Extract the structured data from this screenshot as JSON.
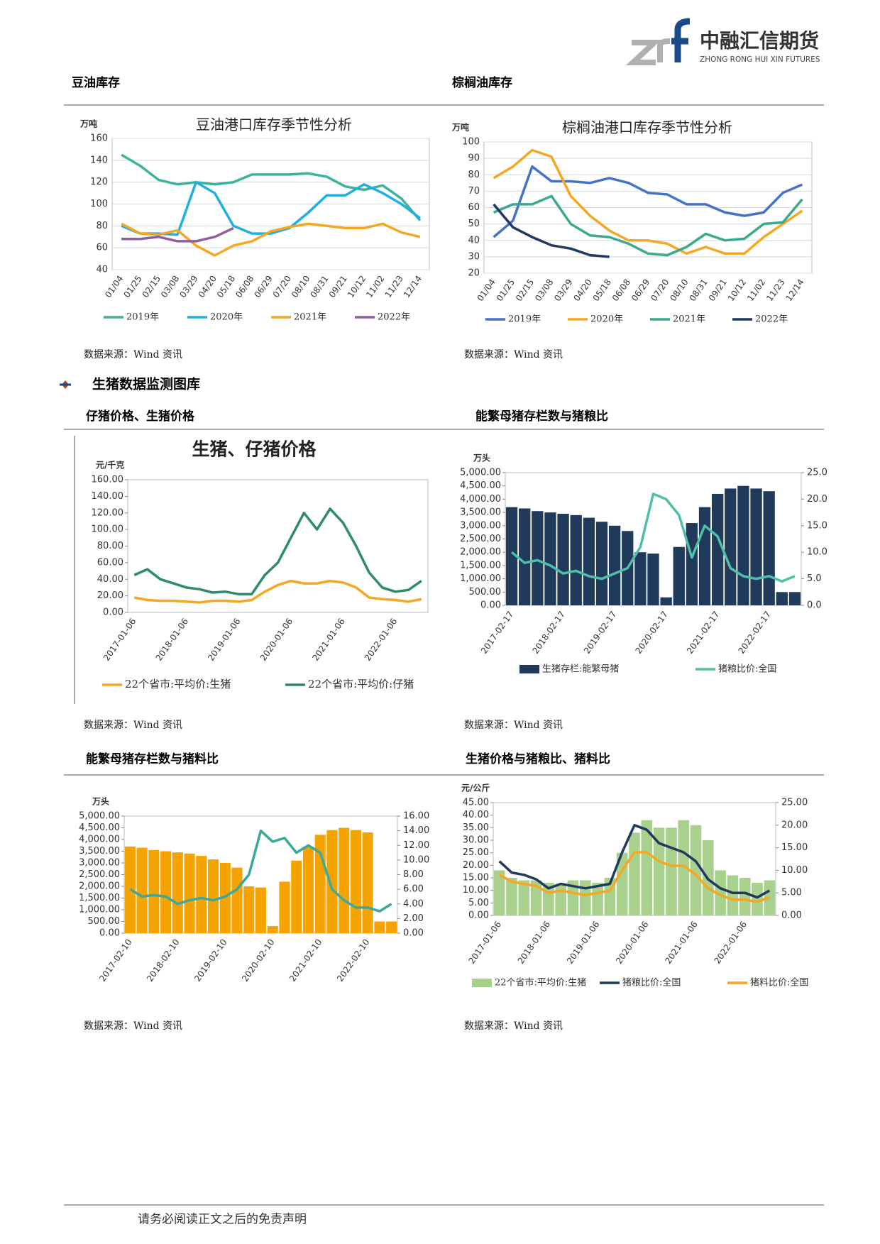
{
  "header": {
    "logo_text": "中融汇信期货",
    "logo_sub": "ZHONG RONG HUI XIN FUTURES"
  },
  "section_title": "生猪数据监测图库",
  "panels": [
    {
      "heading": "豆油库存",
      "source": "数据来源：Wind 资讯"
    },
    {
      "heading": "棕榈油库存",
      "source": "数据来源：Wind 资讯"
    },
    {
      "heading": "仔猪价格、生猪价格",
      "source": "数据来源：Wind 资讯"
    },
    {
      "heading": "能繁母猪存栏数与猪粮比",
      "source": "数据来源：Wind 资讯"
    },
    {
      "heading": "能繁母猪存栏数与猪料比",
      "source": "数据来源：Wind 资讯"
    },
    {
      "heading": "生猪价格与猪粮比、猪料比",
      "source": "数据来源：Wind 资讯"
    }
  ],
  "footer": "请务必阅读正文之后的免责声明",
  "chart_data": [
    {
      "type": "line",
      "title": "豆油港口库存季节性分析",
      "y_label": "万吨",
      "grid": true,
      "categories": [
        "01/04",
        "01/25",
        "02/15",
        "03/08",
        "03/29",
        "04/20",
        "05/18",
        "06/08",
        "06/29",
        "07/20",
        "08/10",
        "08/31",
        "09/21",
        "10/12",
        "11/02",
        "11/23",
        "12/14"
      ],
      "ylim": [
        40,
        160
      ],
      "yticks": [
        40,
        60,
        80,
        100,
        120,
        140,
        160
      ],
      "series": [
        {
          "name": "2019年",
          "color": "#3cb39c",
          "values": [
            145,
            135,
            122,
            118,
            120,
            118,
            120,
            127,
            127,
            127,
            128,
            125,
            116,
            113,
            117,
            105,
            85
          ]
        },
        {
          "name": "2020年",
          "color": "#1fb0e2",
          "values": [
            80,
            73,
            73,
            72,
            120,
            110,
            80,
            73,
            73,
            78,
            92,
            108,
            108,
            118,
            110,
            100,
            87
          ]
        },
        {
          "name": "2021年",
          "color": "#f5a623",
          "values": [
            82,
            73,
            72,
            76,
            62,
            53,
            62,
            66,
            75,
            79,
            82,
            80,
            78,
            78,
            82,
            74,
            70
          ]
        },
        {
          "name": "2022年",
          "color": "#8e5ea2",
          "values": [
            68,
            68,
            70,
            66,
            66,
            70,
            78,
            null,
            null,
            null,
            null,
            null,
            null,
            null,
            null,
            null,
            null
          ]
        }
      ]
    },
    {
      "type": "line",
      "title": "棕榈油港口库存季节性分析",
      "y_label": "万吨",
      "grid": true,
      "categories": [
        "01/04",
        "01/25",
        "02/15",
        "03/08",
        "03/29",
        "04/20",
        "05/18",
        "06/08",
        "06/29",
        "07/20",
        "08/10",
        "08/31",
        "09/21",
        "10/12",
        "11/02",
        "11/23",
        "12/14"
      ],
      "ylim": [
        20,
        100
      ],
      "yticks": [
        20,
        30,
        40,
        50,
        60,
        70,
        80,
        90,
        100
      ],
      "series": [
        {
          "name": "2019年",
          "color": "#4472c4",
          "values": [
            42,
            52,
            85,
            76,
            76,
            75,
            78,
            75,
            69,
            68,
            62,
            62,
            57,
            55,
            57,
            69,
            74
          ]
        },
        {
          "name": "2020年",
          "color": "#f5a623",
          "values": [
            78,
            85,
            95,
            91,
            67,
            55,
            46,
            40,
            40,
            38,
            32,
            36,
            32,
            32,
            42,
            50,
            58
          ]
        },
        {
          "name": "2021年",
          "color": "#3aaa8e",
          "values": [
            57,
            62,
            62,
            67,
            50,
            43,
            42,
            38,
            32,
            31,
            36,
            44,
            40,
            41,
            50,
            51,
            65
          ]
        },
        {
          "name": "2022年",
          "color": "#203864",
          "values": [
            62,
            48,
            42,
            37,
            35,
            31,
            30,
            null,
            null,
            null,
            null,
            null,
            null,
            null,
            null,
            null,
            null
          ]
        }
      ]
    },
    {
      "type": "line",
      "title": "生猪、仔猪价格",
      "y_label": "元/千克",
      "grid": false,
      "categories": [
        "2017-01-06",
        null,
        null,
        null,
        "2018-01-06",
        null,
        null,
        null,
        "2019-01-06",
        null,
        null,
        null,
        "2020-01-06",
        null,
        null,
        null,
        "2021-01-06",
        null,
        null,
        null,
        "2022-01-06",
        null,
        null
      ],
      "ylim": [
        0,
        160
      ],
      "yticks": [
        {
          "value": 0,
          "label": "0.00"
        },
        {
          "value": 20,
          "label": "20.00"
        },
        {
          "value": 40,
          "label": "40.00"
        },
        {
          "value": 60,
          "label": "60.00"
        },
        {
          "value": 80,
          "label": "80.00"
        },
        {
          "value": 100,
          "label": "100.00"
        },
        {
          "value": 120,
          "label": "120.00"
        },
        {
          "value": 140,
          "label": "140.00"
        },
        {
          "value": 160,
          "label": "160.00"
        }
      ],
      "series": [
        {
          "name": "22个省市:平均价:生猪",
          "color": "#f5a623",
          "values": [
            18,
            15,
            14,
            14,
            13,
            12,
            14,
            14,
            13,
            15,
            25,
            33,
            38,
            35,
            35,
            38,
            36,
            30,
            18,
            16,
            15,
            13,
            16
          ]
        },
        {
          "name": "22个省市:平均价:仔猪",
          "color": "#2e8b6e",
          "values": [
            45,
            52,
            40,
            35,
            30,
            28,
            24,
            25,
            22,
            22,
            45,
            60,
            90,
            120,
            100,
            125,
            108,
            80,
            48,
            30,
            25,
            27,
            38
          ]
        }
      ]
    },
    {
      "type": "combo",
      "y_label": "万头",
      "grid": false,
      "categories": [
        "2017-02-17",
        null,
        null,
        null,
        "2018-02-17",
        null,
        null,
        null,
        "2019-02-17",
        null,
        null,
        null,
        "2020-02-17",
        null,
        null,
        null,
        "2021-02-17",
        null,
        null,
        null,
        "2022-02-17",
        null,
        null
      ],
      "ylim": [
        0,
        5000
      ],
      "yticks": [
        {
          "value": 0,
          "label": "0.00"
        },
        {
          "value": 500,
          "label": "500.00"
        },
        {
          "value": 1000,
          "label": "1,000.00"
        },
        {
          "value": 1500,
          "label": "1,500.00"
        },
        {
          "value": 2000,
          "label": "2,000.00"
        },
        {
          "value": 2500,
          "label": "2,500.00"
        },
        {
          "value": 3000,
          "label": "3,000.00"
        },
        {
          "value": 3500,
          "label": "3,500.00"
        },
        {
          "value": 4000,
          "label": "4,000.00"
        },
        {
          "value": 4500,
          "label": "4,500.00"
        },
        {
          "value": 5000,
          "label": "5,000.00"
        }
      ],
      "y2lim": [
        0,
        25
      ],
      "y2ticks": [
        {
          "value": 0,
          "label": "0.0"
        },
        {
          "value": 5,
          "label": "5.0"
        },
        {
          "value": 10,
          "label": "10.0"
        },
        {
          "value": 15,
          "label": "15.0"
        },
        {
          "value": 20,
          "label": "20.0"
        },
        {
          "value": 25,
          "label": "25.0"
        }
      ],
      "series": [
        {
          "name": "生猪存栏:能繁母猪",
          "type": "bar",
          "color": "#1f3a5a",
          "values": [
            3700,
            3650,
            3550,
            3500,
            3450,
            3400,
            3300,
            3150,
            3000,
            2800,
            2000,
            1950,
            300,
            2200,
            3100,
            3700,
            4200,
            4400,
            4500,
            4400,
            4300,
            500,
            500
          ]
        },
        {
          "name": "猪粮比价:全国",
          "type": "line",
          "axis": "y2",
          "color": "#4fbfa8",
          "values": [
            10,
            8,
            8.5,
            7.5,
            6,
            6.5,
            5.5,
            5,
            6,
            7,
            11,
            21,
            20,
            17,
            9,
            15,
            13,
            7,
            5.5,
            5,
            5.5,
            4.5,
            5.5
          ]
        }
      ]
    },
    {
      "type": "combo",
      "y_label": "万头",
      "grid": false,
      "categories": [
        "2017-02-10",
        null,
        null,
        null,
        "2018-02-10",
        null,
        null,
        null,
        "2019-02-10",
        null,
        null,
        null,
        "2020-02-10",
        null,
        null,
        null,
        "2021-02-10",
        null,
        null,
        null,
        "2022-02-10",
        null,
        null
      ],
      "ylim": [
        0,
        5000
      ],
      "yticks": [
        {
          "value": 0,
          "label": "0.00"
        },
        {
          "value": 500,
          "label": "500.00"
        },
        {
          "value": 1000,
          "label": "1,000.00"
        },
        {
          "value": 1500,
          "label": "1,500.00"
        },
        {
          "value": 2000,
          "label": "2,000.00"
        },
        {
          "value": 2500,
          "label": "2,500.00"
        },
        {
          "value": 3000,
          "label": "3,000.00"
        },
        {
          "value": 3500,
          "label": "3,500.00"
        },
        {
          "value": 4000,
          "label": "4,000.00"
        },
        {
          "value": 4500,
          "label": "4,500.00"
        },
        {
          "value": 5000,
          "label": "5,000.00"
        }
      ],
      "y2lim": [
        0,
        16
      ],
      "y2ticks": [
        {
          "value": 0,
          "label": "0.00"
        },
        {
          "value": 2,
          "label": "2.00"
        },
        {
          "value": 4,
          "label": "4.00"
        },
        {
          "value": 6,
          "label": "6.00"
        },
        {
          "value": 8,
          "label": "8.00"
        },
        {
          "value": 10,
          "label": "10.00"
        },
        {
          "value": 12,
          "label": "12.00"
        },
        {
          "value": 14,
          "label": "14.00"
        },
        {
          "value": 16,
          "label": "16.00"
        }
      ],
      "series": [
        {
          "type": "bar",
          "color": "#f5a300",
          "values": [
            3700,
            3650,
            3550,
            3500,
            3450,
            3400,
            3300,
            3150,
            3000,
            2800,
            2000,
            1950,
            300,
            2200,
            3100,
            3700,
            4200,
            4400,
            4500,
            4400,
            4300,
            500,
            500
          ]
        },
        {
          "type": "line",
          "axis": "y2",
          "color": "#3aa89a",
          "values": [
            6,
            5,
            5.2,
            5,
            4,
            4.5,
            4.8,
            4.5,
            5,
            6,
            8,
            14,
            12.5,
            13,
            11,
            12,
            11,
            6,
            4.5,
            3.5,
            3.5,
            3,
            4
          ]
        }
      ]
    },
    {
      "type": "combo",
      "y_label": "元/公斤",
      "grid": false,
      "categories": [
        "2017-01-06",
        null,
        null,
        null,
        "2018-01-06",
        null,
        null,
        null,
        "2019-01-06",
        null,
        null,
        null,
        "2020-01-06",
        null,
        null,
        null,
        "2021-01-06",
        null,
        null,
        null,
        "2022-01-06",
        null,
        null
      ],
      "ylim": [
        0,
        45
      ],
      "yticks": [
        {
          "value": 0,
          "label": "0.00"
        },
        {
          "value": 5,
          "label": "5.00"
        },
        {
          "value": 10,
          "label": "10.00"
        },
        {
          "value": 15,
          "label": "15.00"
        },
        {
          "value": 20,
          "label": "20.00"
        },
        {
          "value": 25,
          "label": "25.00"
        },
        {
          "value": 30,
          "label": "30.00"
        },
        {
          "value": 35,
          "label": "35.00"
        },
        {
          "value": 40,
          "label": "40.00"
        },
        {
          "value": 45,
          "label": "45.00"
        }
      ],
      "y2lim": [
        0,
        25
      ],
      "y2ticks": [
        {
          "value": 0,
          "label": "0.00"
        },
        {
          "value": 5,
          "label": "5.00"
        },
        {
          "value": 10,
          "label": "10.00"
        },
        {
          "value": 15,
          "label": "15.00"
        },
        {
          "value": 20,
          "label": "20.00"
        },
        {
          "value": 25,
          "label": "25.00"
        }
      ],
      "series": [
        {
          "name": "22个省市:平均价:生猪",
          "type": "bar",
          "color": "#a9d18e",
          "values": [
            18,
            15,
            14,
            14,
            13,
            12,
            14,
            14,
            13,
            15,
            25,
            33,
            38,
            35,
            35,
            38,
            36,
            30,
            18,
            16,
            15,
            13,
            14
          ]
        },
        {
          "name": "猪粮比价:全国",
          "type": "line",
          "axis": "y2",
          "color": "#1f3a5a",
          "values": [
            12,
            9.5,
            9,
            8,
            6,
            7,
            6.5,
            6,
            6.5,
            7,
            14,
            20,
            19,
            16,
            15,
            14,
            12,
            8,
            6,
            5,
            5,
            4,
            5.5
          ]
        },
        {
          "name": "猪料比价:全国",
          "type": "line",
          "axis": "y2",
          "color": "#f5a623",
          "values": [
            9,
            7.5,
            7,
            6.5,
            5,
            5.5,
            5,
            4.5,
            5,
            5.5,
            10,
            14,
            14,
            12,
            11,
            11,
            9,
            6,
            4.5,
            3.5,
            3.5,
            3,
            4
          ]
        }
      ]
    }
  ]
}
